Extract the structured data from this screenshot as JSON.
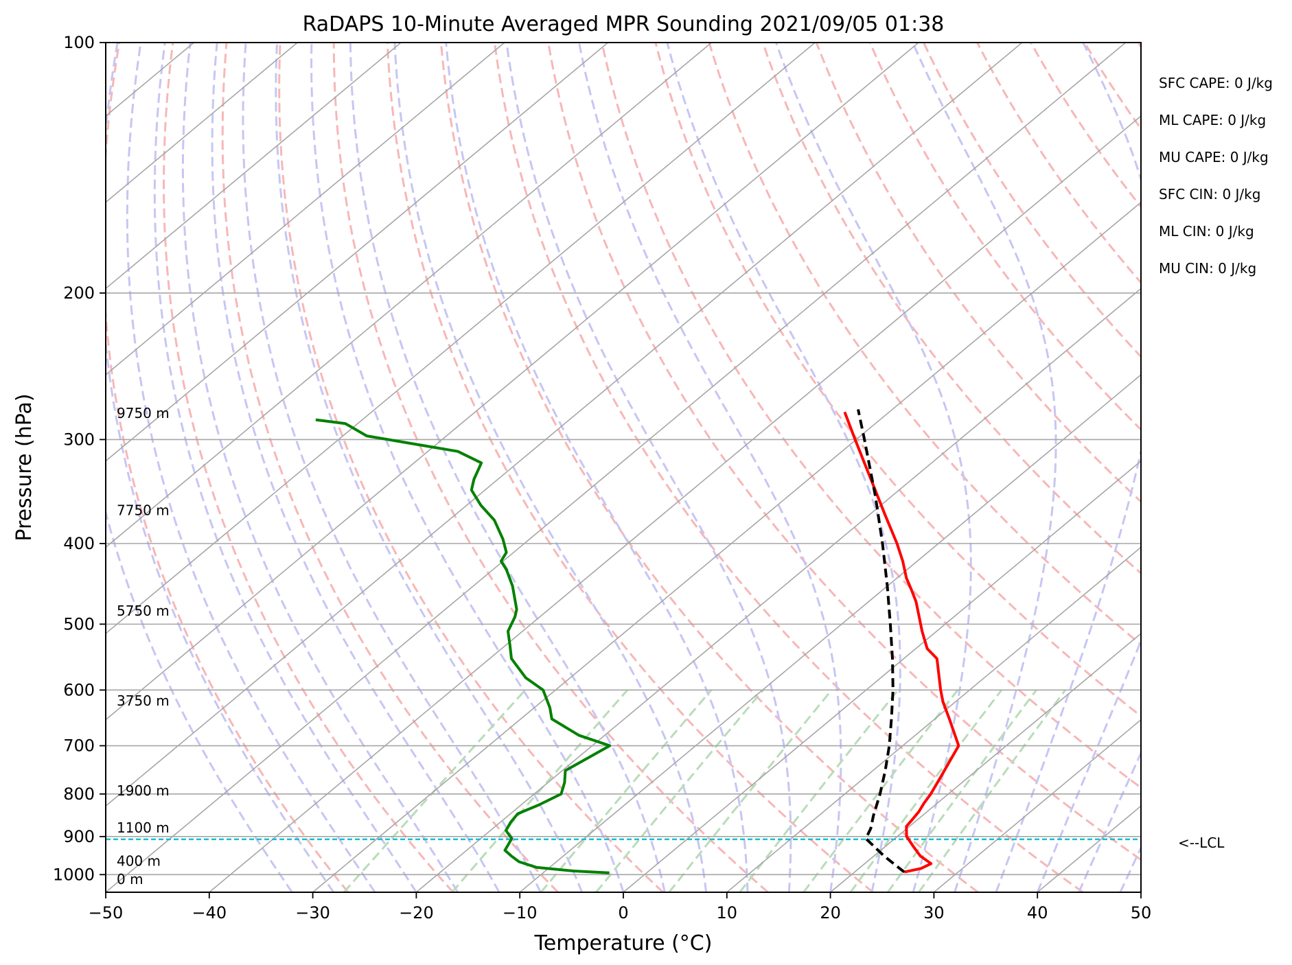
{
  "chart_data": {
    "type": "line",
    "title": "RaDAPS 10-Minute Averaged MPR Sounding 2021/09/05 01:38",
    "xlabel": "Temperature (°C)",
    "ylabel": "Pressure (hPa)",
    "xlim": [
      -50,
      50
    ],
    "ylim": [
      1050,
      100
    ],
    "y_scale": "log",
    "skew_t": true,
    "grid": true,
    "x_ticks": [
      -50,
      -40,
      -30,
      -20,
      -10,
      0,
      10,
      20,
      30,
      40,
      50
    ],
    "x_tick_labels": [
      "−50",
      "−40",
      "−30",
      "−20",
      "−10",
      "0",
      "10",
      "20",
      "30",
      "40",
      "50"
    ],
    "y_ticks": [
      1000,
      900,
      800,
      700,
      600,
      500,
      400,
      300,
      200,
      100
    ],
    "y_tick_labels": [
      "1000",
      "900",
      "800",
      "700",
      "600",
      "500",
      "400",
      "300",
      "200",
      "100"
    ],
    "colors": {
      "temperature": "#ff0000",
      "dewpoint": "#008000",
      "parcel": "#000000",
      "lcl": "#17becf",
      "isotherm": "#a6a6a6",
      "dry_adiabat": "#f7b7b7",
      "moist_adiabat": "#c6c6f4",
      "mixing_ratio": "#b9dcb9"
    },
    "series": [
      {
        "key": "temperature",
        "values": [
          [
            993,
            24.8
          ],
          [
            983,
            26.0
          ],
          [
            970,
            26.4
          ],
          [
            950,
            24.5
          ],
          [
            925,
            22.7
          ],
          [
            900,
            20.9
          ],
          [
            875,
            19.7
          ],
          [
            860,
            19.5
          ],
          [
            840,
            19.2
          ],
          [
            820,
            18.7
          ],
          [
            800,
            18.3
          ],
          [
            760,
            17.2
          ],
          [
            700,
            15.4
          ],
          [
            650,
            11.4
          ],
          [
            620,
            8.8
          ],
          [
            600,
            7.2
          ],
          [
            550,
            3.2
          ],
          [
            535,
            1.1
          ],
          [
            510,
            -1.4
          ],
          [
            470,
            -5.4
          ],
          [
            455,
            -7.2
          ],
          [
            440,
            -9.1
          ],
          [
            420,
            -11.4
          ],
          [
            400,
            -14.0
          ],
          [
            370,
            -18.4
          ],
          [
            345,
            -22.3
          ],
          [
            320,
            -26.5
          ],
          [
            300,
            -30.1
          ],
          [
            278,
            -34.3
          ]
        ]
      },
      {
        "key": "dewpoint",
        "values": [
          [
            995,
            -3.6
          ],
          [
            990,
            -7.3
          ],
          [
            980,
            -11.3
          ],
          [
            965,
            -13.6
          ],
          [
            950,
            -15.0
          ],
          [
            935,
            -16.3
          ],
          [
            905,
            -17.0
          ],
          [
            885,
            -18.5
          ],
          [
            865,
            -19.0
          ],
          [
            845,
            -19.3
          ],
          [
            825,
            -18.3
          ],
          [
            800,
            -17.4
          ],
          [
            775,
            -18.4
          ],
          [
            750,
            -19.7
          ],
          [
            735,
            -19.3
          ],
          [
            700,
            -18.3
          ],
          [
            680,
            -22.5
          ],
          [
            650,
            -27.0
          ],
          [
            630,
            -28.5
          ],
          [
            600,
            -31.2
          ],
          [
            580,
            -34.3
          ],
          [
            550,
            -37.9
          ],
          [
            530,
            -39.6
          ],
          [
            510,
            -41.4
          ],
          [
            490,
            -42.4
          ],
          [
            480,
            -43.1
          ],
          [
            450,
            -46.2
          ],
          [
            430,
            -48.7
          ],
          [
            420,
            -50.2
          ],
          [
            410,
            -50.7
          ],
          [
            395,
            -52.6
          ],
          [
            375,
            -55.6
          ],
          [
            360,
            -58.6
          ],
          [
            345,
            -61.3
          ],
          [
            335,
            -62.3
          ],
          [
            320,
            -63.5
          ],
          [
            310,
            -67.1
          ],
          [
            297,
            -77.7
          ],
          [
            287,
            -81.2
          ],
          [
            284,
            -84.5
          ]
        ]
      },
      {
        "key": "parcel",
        "values": [
          [
            993,
            24.8
          ],
          [
            950,
            21.0
          ],
          [
            905,
            17.2
          ],
          [
            880,
            16.5
          ],
          [
            850,
            15.3
          ],
          [
            800,
            13.4
          ],
          [
            750,
            11.2
          ],
          [
            700,
            8.7
          ],
          [
            650,
            5.8
          ],
          [
            600,
            2.6
          ],
          [
            550,
            -1.1
          ],
          [
            500,
            -5.3
          ],
          [
            450,
            -10.0
          ],
          [
            400,
            -15.4
          ],
          [
            350,
            -21.7
          ],
          [
            300,
            -29.2
          ],
          [
            276,
            -33.3
          ]
        ]
      }
    ],
    "lcl_pressure": 907,
    "lcl_label": "<--LCL",
    "height_labels": [
      {
        "text": "9750 m",
        "p": 279
      },
      {
        "text": "7750 m",
        "p": 365
      },
      {
        "text": "5750 m",
        "p": 482
      },
      {
        "text": "3750 m",
        "p": 618
      },
      {
        "text": "1900 m",
        "p": 793
      },
      {
        "text": "1100 m",
        "p": 878
      },
      {
        "text": "400 m",
        "p": 963
      },
      {
        "text": "0 m",
        "p": 1013
      }
    ],
    "stats": [
      "SFC CAPE: 0 J/kg",
      "ML CAPE: 0 J/kg",
      "MU CAPE: 0 J/kg",
      "SFC CIN: 0 J/kg",
      "ML CIN: 0 J/kg",
      "MU CIN: 0 J/kg"
    ]
  }
}
